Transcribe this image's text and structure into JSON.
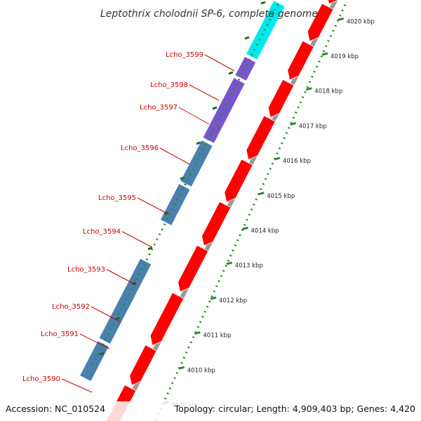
{
  "title": "Leptothrix cholodnii SP-6, complete genome",
  "accession_label": "Accession: NC_010524",
  "topology_label": "Topology: circular; Length: 4,909,403 bp; Genes: 4,420",
  "colors": {
    "cds_reverse": "#ff0000",
    "backbone": "#999999",
    "cyan_feature": "#00e8f0",
    "purple_feature": "#7755cc",
    "steelblue_feature": "#4a80b0",
    "navy_feature": "#2a2a80",
    "label_text": "#cc0000",
    "scale_ticks": "#2a8a2a"
  },
  "scale": {
    "ticks": [
      {
        "label": "4009 kbp"
      },
      {
        "label": "4010 kbp"
      },
      {
        "label": "4011 kbp"
      },
      {
        "label": "4012 kbp"
      },
      {
        "label": "4013 kbp"
      },
      {
        "label": "4014 kbp"
      },
      {
        "label": "4015 kbp"
      },
      {
        "label": "4016 kbp"
      },
      {
        "label": "4017 kbp"
      },
      {
        "label": "4018 kbp"
      },
      {
        "label": "4019 kbp"
      },
      {
        "label": "4020 kbp"
      }
    ]
  },
  "gene_labels": [
    {
      "name": "Lcho_3599"
    },
    {
      "name": "Lcho_3598"
    },
    {
      "name": "Lcho_3597"
    },
    {
      "name": "Lcho_3596"
    },
    {
      "name": "Lcho_3595"
    },
    {
      "name": "Lcho_3594"
    },
    {
      "name": "Lcho_3593"
    },
    {
      "name": "Lcho_3592"
    },
    {
      "name": "Lcho_3591"
    },
    {
      "name": "Lcho_3590"
    }
  ]
}
